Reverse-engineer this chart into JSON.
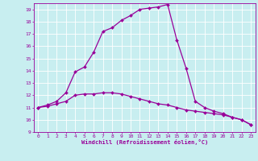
{
  "xlabel": "Windchill (Refroidissement éolien,°C)",
  "bg_color": "#c8eef0",
  "line_color": "#990099",
  "xlim": [
    -0.5,
    23.5
  ],
  "ylim": [
    9,
    19.5
  ],
  "yticks": [
    9,
    10,
    11,
    12,
    13,
    14,
    15,
    16,
    17,
    18,
    19
  ],
  "xticks": [
    0,
    1,
    2,
    3,
    4,
    5,
    6,
    7,
    8,
    9,
    10,
    11,
    12,
    13,
    14,
    15,
    16,
    17,
    18,
    19,
    20,
    21,
    22,
    23
  ],
  "series1_x": [
    0,
    1,
    2,
    3,
    4,
    5,
    6,
    7,
    8,
    9,
    10,
    11,
    12,
    13,
    14,
    15,
    16,
    17,
    18,
    19,
    20,
    21,
    22,
    23
  ],
  "series1_y": [
    11.0,
    11.2,
    11.5,
    12.2,
    13.9,
    14.3,
    15.5,
    17.2,
    17.5,
    18.1,
    18.5,
    19.0,
    19.1,
    19.2,
    19.4,
    16.5,
    14.2,
    11.5,
    11.0,
    10.7,
    10.5,
    10.2,
    10.0,
    9.6
  ],
  "series2_x": [
    0,
    1,
    2,
    3,
    4,
    5,
    6,
    7,
    8,
    9,
    10,
    11,
    12,
    13,
    14,
    15,
    16,
    17,
    18,
    19,
    20,
    21,
    22,
    23
  ],
  "series2_y": [
    11.0,
    11.1,
    11.3,
    11.5,
    12.0,
    12.1,
    12.1,
    12.2,
    12.2,
    12.1,
    11.9,
    11.7,
    11.5,
    11.3,
    11.2,
    11.0,
    10.8,
    10.7,
    10.6,
    10.5,
    10.4,
    10.2,
    10.0,
    9.6
  ],
  "markersize": 2.0,
  "linewidth": 0.9
}
